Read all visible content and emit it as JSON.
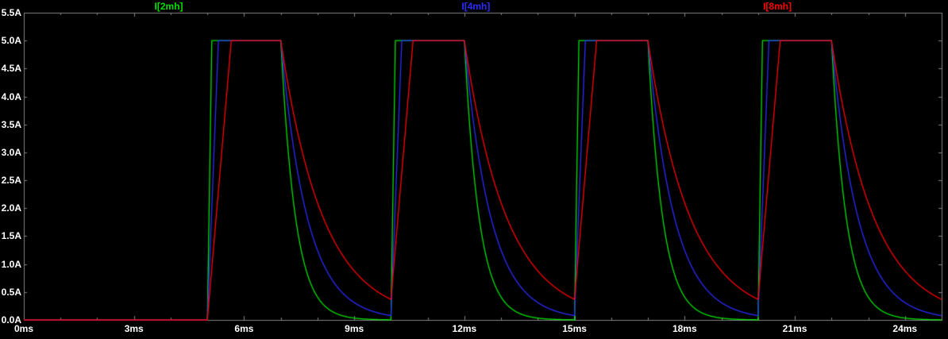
{
  "colors": {
    "background": "#000000",
    "plot_border": "#848484",
    "tick": "#848484",
    "axis_text": "#FFFFFF"
  },
  "chart_data": {
    "type": "line",
    "title": "",
    "grid": false,
    "legend_position": "top",
    "x_axis": {
      "unit": "ms",
      "min": 0,
      "max": 25,
      "major_tick_step": 3,
      "minor_tick_step": 1,
      "tick_values": [
        0,
        3,
        6,
        9,
        12,
        15,
        18,
        21,
        24
      ],
      "tick_labels": [
        "0ms",
        "3ms",
        "6ms",
        "9ms",
        "12ms",
        "15ms",
        "18ms",
        "21ms",
        "24ms"
      ]
    },
    "y_axis": {
      "unit": "A",
      "min": 0,
      "max": 5.5,
      "tick_step": 0.5,
      "tick_values": [
        0.0,
        0.5,
        1.0,
        1.5,
        2.0,
        2.5,
        3.0,
        3.5,
        4.0,
        4.5,
        5.0,
        5.5
      ],
      "tick_labels": [
        "0.0A",
        "0.5A",
        "1.0A",
        "1.5A",
        "2.0A",
        "2.5A",
        "3.0A",
        "3.5A",
        "4.0A",
        "4.5A",
        "5.0A",
        "5.5A"
      ]
    },
    "series": [
      {
        "name": "I[2mh]",
        "color": "#00E000",
        "waveform": {
          "kind": "inductor_pulse_train",
          "baseline_A": 0.0,
          "amplitude_A": 5.0,
          "pulse_starts_ms": [
            5,
            10,
            15,
            20
          ],
          "pulse_ends_ms": [
            7,
            12,
            17,
            22
          ],
          "rise_time_ms": 0.12,
          "decay_tau_ms": 0.4
        }
      },
      {
        "name": "I[4mh]",
        "color": "#2C2CFF",
        "waveform": {
          "kind": "inductor_pulse_train",
          "baseline_A": 0.0,
          "amplitude_A": 5.0,
          "pulse_starts_ms": [
            5,
            10,
            15,
            20
          ],
          "pulse_ends_ms": [
            7,
            12,
            17,
            22
          ],
          "rise_time_ms": 0.3,
          "decay_tau_ms": 0.72
        }
      },
      {
        "name": "I[8mh]",
        "color": "#FF0000",
        "waveform": {
          "kind": "inductor_pulse_train",
          "baseline_A": 0.0,
          "amplitude_A": 5.0,
          "pulse_starts_ms": [
            5,
            10,
            15,
            20
          ],
          "pulse_ends_ms": [
            7,
            12,
            17,
            22
          ],
          "rise_time_ms": 0.65,
          "decay_tau_ms": 1.15
        }
      }
    ]
  }
}
